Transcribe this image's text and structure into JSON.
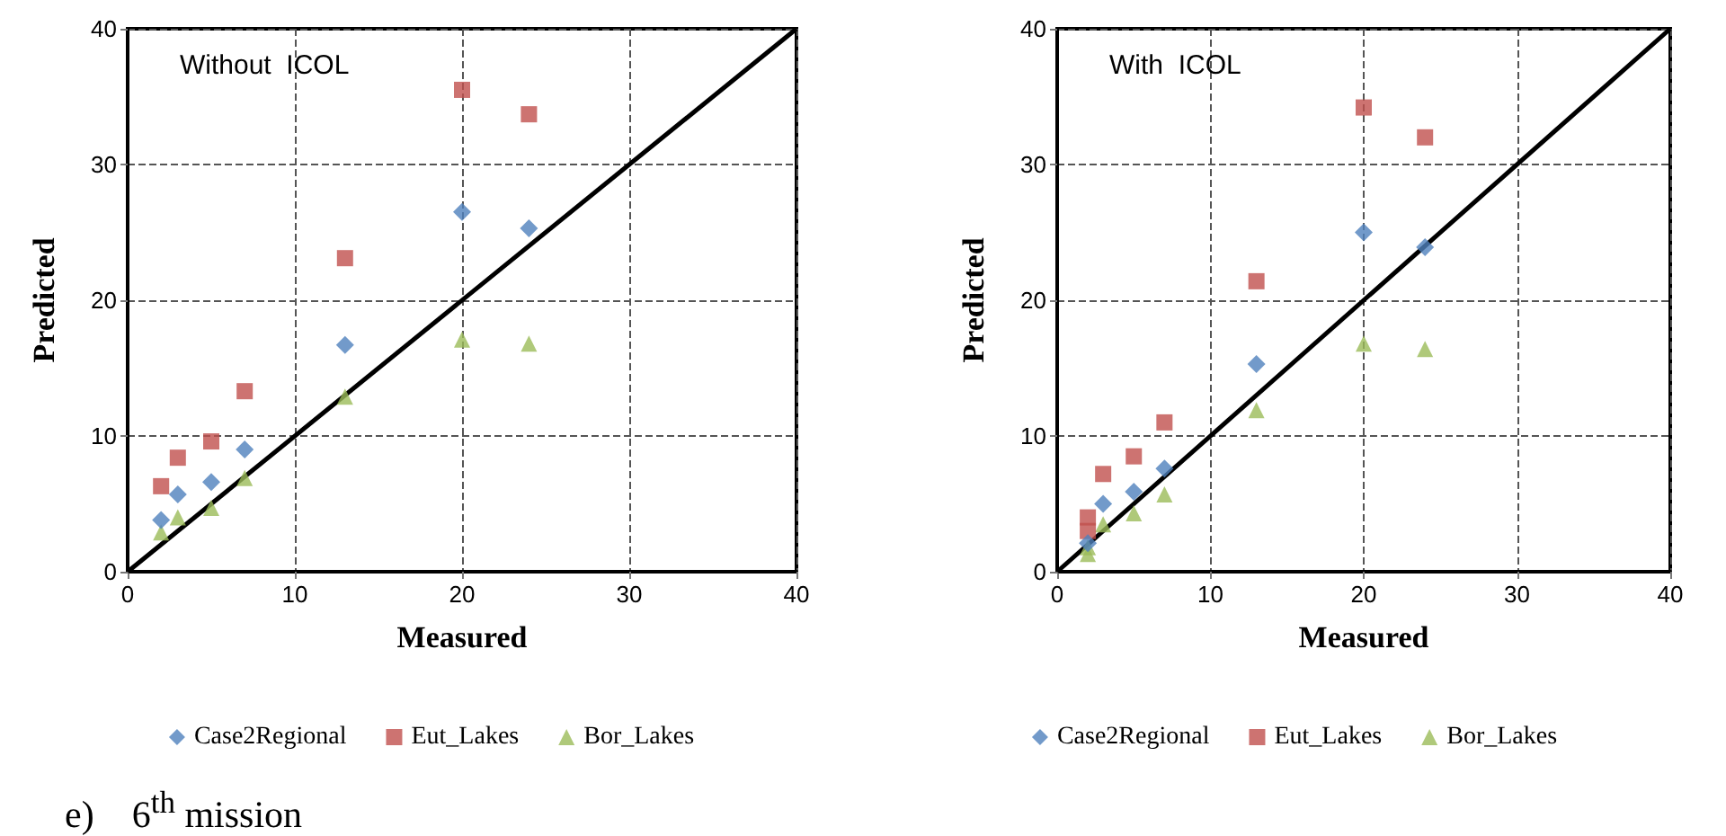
{
  "chart_data": [
    {
      "type": "scatter",
      "title": "Without  ICOL",
      "xlabel": "Measured",
      "ylabel": "Predicted",
      "xlim": [
        0,
        40
      ],
      "ylim": [
        0,
        40
      ],
      "xticks": [
        0,
        10,
        20,
        30,
        40
      ],
      "yticks": [
        0,
        10,
        20,
        30,
        40
      ],
      "grid": true,
      "legend": "bottom",
      "annotations": [
        "e)    6$^{th}$ mission"
      ],
      "series": [
        {
          "name": "Case2Regional",
          "color": "#4f81bd",
          "marker": "diamond",
          "x": [
            2,
            3,
            5,
            7,
            13,
            20,
            24
          ],
          "values": [
            3.8,
            5.7,
            6.6,
            9.0,
            16.7,
            26.5,
            25.3
          ]
        },
        {
          "name": "Eut_Lakes",
          "color": "#c0504d",
          "marker": "square",
          "x": [
            2,
            3,
            5,
            7,
            13,
            20,
            24
          ],
          "values": [
            6.3,
            8.4,
            9.6,
            13.3,
            23.1,
            35.5,
            33.7
          ]
        },
        {
          "name": "Bor_Lakes",
          "color": "#9bbb59",
          "marker": "triangle",
          "x": [
            2,
            3,
            5,
            7,
            13,
            20,
            24
          ],
          "values": [
            2.9,
            4.0,
            4.7,
            6.9,
            12.9,
            17.1,
            16.8
          ]
        },
        {
          "type": "line",
          "color": "#000000",
          "marker": "none",
          "line_style": "solid",
          "x": [
            0,
            40
          ],
          "values": [
            0,
            40
          ]
        }
      ]
    },
    {
      "type": "scatter",
      "title": "With  ICOL",
      "xlabel": "Measured",
      "ylabel": "Predicted",
      "xlim": [
        0,
        40
      ],
      "ylim": [
        0,
        40
      ],
      "xticks": [
        0,
        10,
        20,
        30,
        40
      ],
      "yticks": [
        0,
        10,
        20,
        30,
        40
      ],
      "grid": true,
      "legend": "bottom",
      "series": [
        {
          "name": "Case2Regional",
          "color": "#4f81bd",
          "marker": "diamond",
          "x": [
            2,
            3,
            5,
            7,
            13,
            20,
            24
          ],
          "values": [
            2.1,
            5.0,
            5.9,
            7.6,
            15.3,
            25.0,
            23.9
          ]
        },
        {
          "name": "Eut_Lakes",
          "color": "#c0504d",
          "marker": "square",
          "x": [
            2,
            2,
            3,
            5,
            7,
            13,
            20,
            24
          ],
          "values": [
            4.0,
            3.0,
            7.2,
            8.5,
            11.0,
            21.4,
            34.2,
            32.0
          ]
        },
        {
          "name": "Bor_Lakes",
          "color": "#9bbb59",
          "marker": "triangle",
          "x": [
            2,
            2,
            3,
            5,
            7,
            13,
            20,
            24
          ],
          "values": [
            1.3,
            1.8,
            3.5,
            4.3,
            5.7,
            11.9,
            16.8,
            16.4
          ]
        },
        {
          "type": "line",
          "color": "#000000",
          "marker": "none",
          "line_style": "solid",
          "x": [
            0,
            40
          ],
          "values": [
            0,
            40
          ]
        }
      ]
    }
  ]
}
